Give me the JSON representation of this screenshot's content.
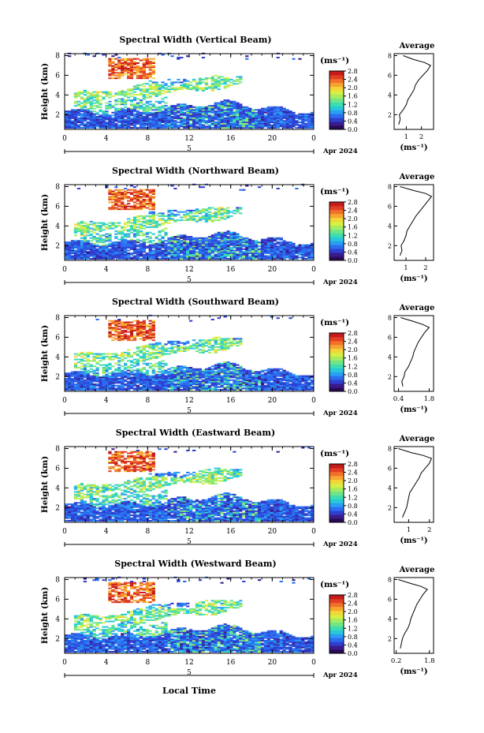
{
  "figure": {
    "xlabel": "Local Time",
    "date_label": "Apr 2024",
    "day_label": "5",
    "colorbar_unit": "(ms⁻¹)",
    "avg_title": "Average",
    "avg_xlabel": "(ms⁻¹)",
    "colormap": [
      "#2a0a55",
      "#3a1b8c",
      "#2f3fd0",
      "#2a6df0",
      "#2a9ef2",
      "#27c9d9",
      "#3fdcb0",
      "#72e686",
      "#a6ec5e",
      "#d7ee42",
      "#f5d43a",
      "#f7a52f",
      "#f2702a",
      "#e23e22",
      "#c41c1c"
    ]
  },
  "chart_data": [
    {
      "type": "heatmap",
      "title": "Spectral Width (Vertical Beam)",
      "ylabel": "Height (km)",
      "x_ticks": [
        "0",
        "4",
        "8",
        "12",
        "16",
        "20",
        "0"
      ],
      "y_ticks": [
        "2",
        "4",
        "6",
        "8"
      ],
      "xlim": [
        0,
        24
      ],
      "ylim": [
        0.5,
        8.2
      ],
      "colorbar_ticks": [
        "0.0",
        "0.4",
        "0.8",
        "1.2",
        "1.6",
        "2.0",
        "2.4",
        "2.8"
      ],
      "colorbar_range": [
        0,
        2.8
      ],
      "average_profile": {
        "x_ticks": [
          "1",
          "2"
        ],
        "xlim": [
          0.2,
          2.8
        ],
        "heights": [
          1,
          1.5,
          2,
          2.5,
          3,
          3.5,
          4,
          4.5,
          5,
          5.5,
          6,
          6.5,
          7,
          7.3,
          7.6,
          8
        ],
        "values": [
          0.5,
          0.6,
          0.55,
          0.8,
          1.0,
          1.1,
          1.3,
          1.5,
          1.6,
          1.8,
          2.1,
          2.4,
          2.6,
          2.2,
          1.5,
          0.8
        ]
      }
    },
    {
      "type": "heatmap",
      "title": "Spectral Width (Northward Beam)",
      "ylabel": "Height (km)",
      "x_ticks": [
        "0",
        "4",
        "8",
        "12",
        "16",
        "20",
        "0"
      ],
      "y_ticks": [
        "2",
        "4",
        "6",
        "8"
      ],
      "xlim": [
        0,
        24
      ],
      "ylim": [
        0.5,
        8.2
      ],
      "colorbar_ticks": [
        "0.0",
        "0.4",
        "0.8",
        "1.2",
        "1.6",
        "2.0",
        "2.4",
        "2.8"
      ],
      "colorbar_range": [
        0,
        2.8
      ],
      "average_profile": {
        "x_ticks": [
          "1",
          "2"
        ],
        "xlim": [
          0.4,
          2.4
        ],
        "heights": [
          1,
          1.5,
          2,
          2.5,
          3,
          3.5,
          4,
          4.5,
          5,
          5.5,
          6,
          6.5,
          7,
          7.3,
          7.6,
          8
        ],
        "values": [
          0.7,
          0.8,
          0.75,
          0.9,
          1.0,
          1.05,
          1.2,
          1.35,
          1.5,
          1.7,
          1.9,
          2.1,
          2.3,
          2.0,
          1.4,
          0.7
        ]
      }
    },
    {
      "type": "heatmap",
      "title": "Spectral Width (Southward Beam)",
      "ylabel": "Height (km)",
      "x_ticks": [
        "0",
        "4",
        "8",
        "12",
        "16",
        "20",
        "0"
      ],
      "y_ticks": [
        "2",
        "4",
        "6",
        "8"
      ],
      "xlim": [
        0,
        24
      ],
      "ylim": [
        0.5,
        8.2
      ],
      "colorbar_ticks": [
        "0.0",
        "0.4",
        "0.8",
        "1.2",
        "1.6",
        "2.0",
        "2.4",
        "2.8"
      ],
      "colorbar_range": [
        0,
        2.8
      ],
      "average_profile": {
        "x_ticks": [
          "0.4",
          "1.8"
        ],
        "xlim": [
          0.2,
          2.0
        ],
        "heights": [
          1,
          1.5,
          2,
          2.5,
          3,
          3.5,
          4,
          4.5,
          5,
          5.5,
          6,
          6.5,
          7,
          7.3,
          7.6,
          8
        ],
        "values": [
          0.6,
          0.55,
          0.65,
          0.7,
          0.85,
          0.95,
          1.05,
          1.1,
          1.2,
          1.3,
          1.45,
          1.6,
          1.8,
          1.5,
          1.1,
          0.5
        ]
      }
    },
    {
      "type": "heatmap",
      "title": "Spectral Width (Eastward Beam)",
      "ylabel": "Height (km)",
      "x_ticks": [
        "0",
        "4",
        "8",
        "12",
        "16",
        "20",
        "0"
      ],
      "y_ticks": [
        "2",
        "4",
        "6",
        "8"
      ],
      "xlim": [
        0,
        24
      ],
      "ylim": [
        0.5,
        8.2
      ],
      "colorbar_ticks": [
        "0.0",
        "0.4",
        "0.8",
        "1.2",
        "1.6",
        "2.0",
        "2.4",
        "2.8"
      ],
      "colorbar_range": [
        0,
        2.8
      ],
      "average_profile": {
        "x_ticks": [
          "1",
          "2"
        ],
        "xlim": [
          0.3,
          2.2
        ],
        "heights": [
          1,
          1.5,
          2,
          2.5,
          3,
          3.5,
          4,
          4.5,
          5,
          5.5,
          6,
          6.5,
          7,
          7.3,
          7.6,
          8
        ],
        "values": [
          0.7,
          0.8,
          0.9,
          0.95,
          1.0,
          1.05,
          1.2,
          1.35,
          1.5,
          1.6,
          1.8,
          2.0,
          2.1,
          1.7,
          1.1,
          0.5
        ]
      }
    },
    {
      "type": "heatmap",
      "title": "Spectral Width (Westward Beam)",
      "ylabel": "Height (km)",
      "x_ticks": [
        "0",
        "4",
        "8",
        "12",
        "16",
        "20",
        "0"
      ],
      "y_ticks": [
        "2",
        "4",
        "6",
        "8"
      ],
      "xlim": [
        0,
        24
      ],
      "ylim": [
        0.5,
        8.2
      ],
      "colorbar_ticks": [
        "0.0",
        "0.4",
        "0.8",
        "1.2",
        "1.6",
        "2.0",
        "2.4",
        "2.8"
      ],
      "colorbar_range": [
        0,
        2.8
      ],
      "average_profile": {
        "x_ticks": [
          "0.2",
          "1.8"
        ],
        "xlim": [
          0.1,
          2.0
        ],
        "heights": [
          1,
          1.5,
          2,
          2.5,
          3,
          3.5,
          4,
          4.5,
          5,
          5.5,
          6,
          6.5,
          7,
          7.3,
          7.6,
          8
        ],
        "values": [
          0.4,
          0.45,
          0.5,
          0.6,
          0.75,
          0.85,
          0.9,
          1.0,
          1.1,
          1.2,
          1.35,
          1.5,
          1.7,
          1.4,
          0.9,
          0.3
        ]
      }
    }
  ]
}
